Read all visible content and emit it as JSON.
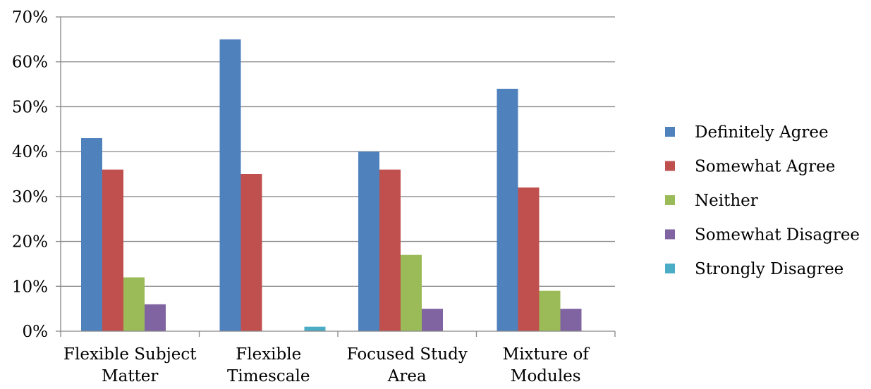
{
  "chart_data": {
    "type": "bar",
    "title": "",
    "xlabel": "",
    "ylabel": "",
    "ylim": [
      0,
      70
    ],
    "y_ticks": [
      "0%",
      "10%",
      "20%",
      "30%",
      "40%",
      "50%",
      "60%",
      "70%"
    ],
    "y_tick_values": [
      0,
      10,
      20,
      30,
      40,
      50,
      60,
      70
    ],
    "grid": true,
    "legend_position": "right",
    "categories": [
      [
        "Flexible Subject",
        "Matter"
      ],
      [
        "Flexible",
        "Timescale"
      ],
      [
        "Focused Study",
        "Area"
      ],
      [
        "Mixture of",
        "Modules"
      ]
    ],
    "series": [
      {
        "name": "Definitely Agree",
        "color": "#4F81BD",
        "values": [
          43,
          65,
          40,
          54
        ]
      },
      {
        "name": "Somewhat Agree",
        "color": "#C0504D",
        "values": [
          36,
          35,
          36,
          32
        ]
      },
      {
        "name": "Neither",
        "color": "#9BBB59",
        "values": [
          12,
          0,
          17,
          9
        ]
      },
      {
        "name": "Somewhat Disagree",
        "color": "#8064A2",
        "values": [
          6,
          0,
          5,
          5
        ]
      },
      {
        "name": "Strongly Disagree",
        "color": "#4BACC6",
        "values": [
          0,
          1,
          0,
          0
        ]
      }
    ]
  }
}
